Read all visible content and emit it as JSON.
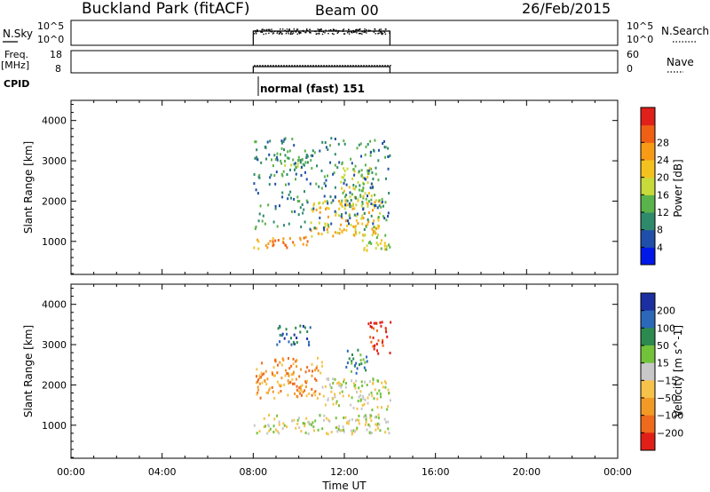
{
  "header": {
    "station": "Buckland Park (fitACF)",
    "beam": "Beam 00",
    "date": "26/Feb/2015"
  },
  "strip_panels": {
    "nsky_label": "N.Sky",
    "nsky_ticks": [
      "10^5",
      "10^0"
    ],
    "nsearch_label": "N.Search",
    "freq_label_1": "Freq.",
    "freq_label_2": "[MHz]",
    "freq_ticks": [
      "18",
      "8"
    ],
    "nave_ticks": [
      "60",
      "0"
    ],
    "nave_label": "Nave",
    "cpid_label": "CPID",
    "cpid_text": "normal (fast) 151"
  },
  "chart_data": [
    {
      "type": "heatmap",
      "quantity": "power",
      "ylabel": "Slant Range [km]",
      "ylim": [
        180,
        4500
      ],
      "yticks": [
        1000,
        2000,
        3000,
        4000
      ],
      "xlabel": "Time UT",
      "xlim": [
        "00:00",
        "24:00"
      ],
      "xticks": [
        "00:00",
        "04:00",
        "08:00",
        "12:00",
        "16:00",
        "20:00",
        "00:00"
      ],
      "data_interval": [
        "08:00",
        "14:00"
      ],
      "colorbar": {
        "label": "Power [dB]",
        "ticks": [
          "4",
          "8",
          "12",
          "16",
          "20",
          "24",
          "28"
        ],
        "colors": [
          "#0018e8",
          "#1f4fa8",
          "#2f8a6c",
          "#5ab24a",
          "#c8d93a",
          "#f3c21f",
          "#f79a16",
          "#ef6015",
          "#e0201a"
        ]
      },
      "echo_regions": [
        {
          "t_start_h": 8.0,
          "t_end_h": 10.5,
          "range_start_km": 850,
          "range_end_km": 1150,
          "value_db": 24
        },
        {
          "t_start_h": 10.5,
          "t_end_h": 13.6,
          "range_start_km": 1150,
          "range_end_km": 2050,
          "value_db": 18
        },
        {
          "t_start_h": 12.6,
          "t_end_h": 14.0,
          "range_start_km": 750,
          "range_end_km": 1200,
          "value_db": 14
        },
        {
          "t_start_h": 8.8,
          "t_end_h": 10.6,
          "range_start_km": 2850,
          "range_end_km": 3300,
          "value_db": 12
        },
        {
          "t_start_h": 11.8,
          "t_end_h": 13.2,
          "range_start_km": 1900,
          "range_end_km": 2900,
          "value_db": 14
        },
        {
          "t_start_h": 8.0,
          "t_end_h": 14.0,
          "range_start_km": 1300,
          "range_end_km": 3600,
          "value_db": 8
        }
      ]
    },
    {
      "type": "heatmap",
      "quantity": "velocity",
      "ylabel": "Slant Range [km]",
      "ylim": [
        180,
        4500
      ],
      "yticks": [
        1000,
        2000,
        3000,
        4000
      ],
      "xlabel": "Time UT",
      "xlim": [
        "00:00",
        "24:00"
      ],
      "xticks": [
        "00:00",
        "04:00",
        "08:00",
        "12:00",
        "16:00",
        "20:00",
        "00:00"
      ],
      "data_interval": [
        "08:00",
        "14:00"
      ],
      "colorbar": {
        "label": "Velocity [m s^-1]",
        "ticks": [
          "200",
          "100",
          "50",
          "15",
          "−15",
          "−50",
          "−100",
          "−200"
        ],
        "colors": [
          "#1c2fa0",
          "#2b68b8",
          "#2c8a4e",
          "#72c23a",
          "#c8c8c8",
          "#f5c24a",
          "#f29a26",
          "#ee6a1c",
          "#e02018"
        ]
      },
      "echo_regions": [
        {
          "t_start_h": 8.0,
          "t_end_h": 14.0,
          "range_start_km": 800,
          "range_end_km": 1300,
          "value_ms": 0
        },
        {
          "t_start_h": 11.0,
          "t_end_h": 14.0,
          "range_start_km": 1400,
          "range_end_km": 2200,
          "value_ms": 0
        },
        {
          "t_start_h": 8.0,
          "t_end_h": 11.0,
          "range_start_km": 1700,
          "range_end_km": 2700,
          "value_ms": -60
        },
        {
          "t_start_h": 9.0,
          "t_end_h": 10.5,
          "range_start_km": 3000,
          "range_end_km": 3500,
          "value_ms": 120
        },
        {
          "t_start_h": 12.0,
          "t_end_h": 13.0,
          "range_start_km": 2300,
          "range_end_km": 2900,
          "value_ms": 60
        },
        {
          "t_start_h": 13.0,
          "t_end_h": 14.0,
          "range_start_km": 2800,
          "range_end_km": 3600,
          "value_ms": -150
        }
      ]
    }
  ]
}
